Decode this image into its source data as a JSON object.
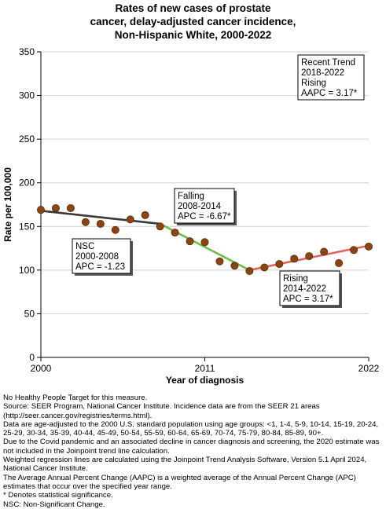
{
  "title_lines": [
    "Rates of new cases of prostate",
    "cancer, delay-adjusted cancer incidence,",
    "Non-Hispanic White,  2000-2022"
  ],
  "chart_data": {
    "type": "scatter",
    "xlabel": "Year of diagnosis",
    "ylabel": "Rate per 100,000",
    "xlim": [
      2000,
      2022
    ],
    "ylim": [
      0,
      350
    ],
    "x_ticks": [
      2000,
      2011,
      2022
    ],
    "x_tick_labels": [
      "2000",
      "2011",
      "2022"
    ],
    "y_ticks": [
      0,
      50,
      100,
      150,
      200,
      250,
      300,
      350
    ],
    "y_tick_labels": [
      "0",
      "50",
      "100",
      "150",
      "200",
      "250",
      "300",
      "350"
    ],
    "grid": true,
    "legend": "none",
    "observed": {
      "x": [
        2000,
        2001,
        2002,
        2003,
        2004,
        2005,
        2006,
        2007,
        2008,
        2009,
        2010,
        2011,
        2012,
        2013,
        2014,
        2015,
        2016,
        2017,
        2018,
        2019,
        2020,
        2021,
        2022
      ],
      "y": [
        169,
        171,
        171,
        155,
        153,
        146,
        158,
        163,
        150,
        143,
        133,
        132,
        110,
        105,
        99,
        103,
        107,
        113,
        116,
        121,
        108,
        123,
        127
      ],
      "color": "#8b4513"
    },
    "trend_segments": [
      {
        "x": [
          2000,
          2008
        ],
        "y": [
          168,
          153
        ],
        "color": "#3a3a3a"
      },
      {
        "x": [
          2008,
          2014
        ],
        "y": [
          153,
          100
        ],
        "color": "#6abf4b"
      },
      {
        "x": [
          2014,
          2022
        ],
        "y": [
          100,
          128
        ],
        "color": "#e8605c"
      }
    ],
    "annotations": [
      {
        "lines": [
          "Recent Trend",
          "2018-2022",
          "Rising",
          "AAPC =  3.17*"
        ],
        "shadow": false
      },
      {
        "lines": [
          "Falling",
          "2008-2014",
          "APC = -6.67*"
        ],
        "shadow": true
      },
      {
        "lines": [
          "NSC",
          "2000-2008",
          "APC = -1.23"
        ],
        "shadow": true
      },
      {
        "lines": [
          "Rising",
          "2014-2022",
          "APC =  3.17*"
        ],
        "shadow": true
      }
    ]
  },
  "footnotes": [
    "No Healthy People Target for this measure.",
    "Source: SEER Program, National Cancer Institute. Incidence data are from the SEER 21 areas (http://seer.cancer.gov/registries/terms.html).",
    "Data are age-adjusted to the 2000 U.S. standard population using age groups: <1, 1-4, 5-9, 10-14, 15-19, 20-24, 25-29, 30-34, 35-39, 40-44, 45-49, 50-54, 55-59, 60-64, 65-69, 70-74, 75-79, 80-84, 85-89, 90+.",
    "Due to the Covid pandemic and an associated decline in cancer diagnosis and screening, the 2020 estimate was not included in the Joinpoint trend line calculation.",
    "Weighted regression lines are calculated using the Joinpoint Trend Analysis Software, Version 5.1 April 2024, National Cancer Institute.",
    "The Average Annual Percent Change (AAPC) is a weighted average of the Annual Percent Change (APC) estimates that occur over the specified year range.",
    "* Denotes statistical significance.",
    "NSC: Non-Significant Change."
  ]
}
